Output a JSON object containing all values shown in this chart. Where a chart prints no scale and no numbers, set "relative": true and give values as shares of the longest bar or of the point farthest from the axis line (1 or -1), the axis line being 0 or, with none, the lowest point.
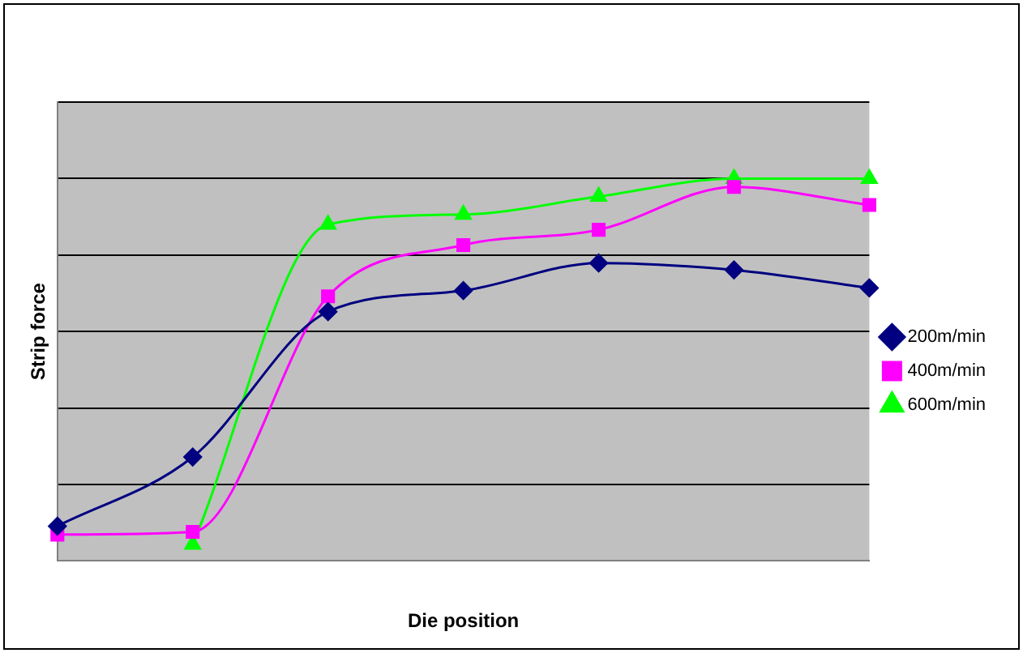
{
  "chart_data": {
    "type": "line",
    "relative": true,
    "xlabel": "Die position",
    "ylabel": "Strip force",
    "categories": [
      null,
      null,
      null,
      null,
      null,
      null,
      null
    ],
    "grid": "y",
    "legend": "right",
    "series": [
      {
        "name": "200m/min",
        "color": "#000080",
        "marker": "diamond",
        "values": [
          0.091,
          0.272,
          0.652,
          0.707,
          0.779,
          0.761,
          0.714
        ]
      },
      {
        "name": "400m/min",
        "color": "#ff00ff",
        "marker": "square",
        "values": [
          0.069,
          0.076,
          0.692,
          0.826,
          0.866,
          0.978,
          0.931
        ]
      },
      {
        "name": "600m/min",
        "color": "#00ff00",
        "marker": "triangle",
        "values": [
          null,
          0.043,
          0.88,
          0.906,
          0.953,
          1,
          1
        ]
      }
    ]
  }
}
